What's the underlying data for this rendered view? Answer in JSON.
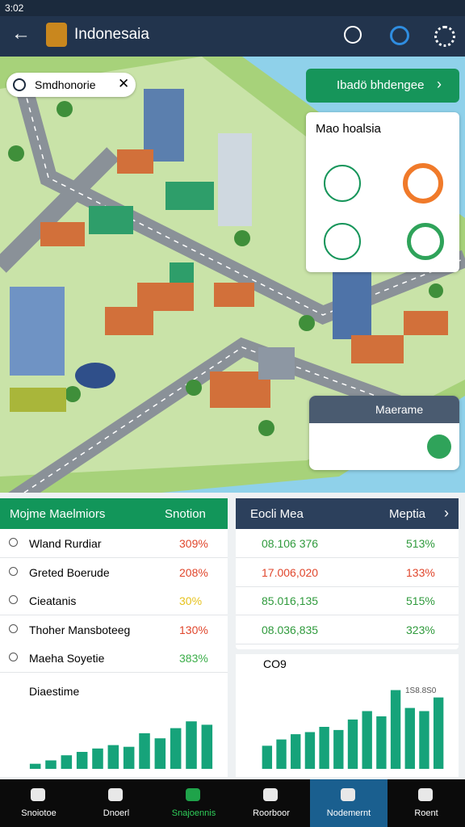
{
  "status_bar": {
    "time": "3:02"
  },
  "app_bar": {
    "title": "Indonesaia"
  },
  "map": {
    "search_text": "Smdhonorie",
    "action_button": "Ibadö bhdengee",
    "info_card": {
      "title": "Mao hoalsia"
    },
    "people_card": {
      "title": "Maerame"
    }
  },
  "left_panel": {
    "header_left": "Mojme Maelmiors",
    "header_right": "Snotion",
    "rows": [
      {
        "label": "Wland Rurdiar",
        "value": "309%",
        "color": "#e0462c"
      },
      {
        "label": "Greted Boerude",
        "value": "208%",
        "color": "#e0462c"
      },
      {
        "label": "Cieatanis",
        "value": "30%",
        "color": "#e6c21e"
      },
      {
        "label": "Thoher Mansboteeg",
        "value": "130%",
        "color": "#e0462c"
      },
      {
        "label": "Maeha Soyetie",
        "value": "383%",
        "color": "#3cae4a"
      }
    ],
    "chart": {
      "title": "Diaestime",
      "color": "#16a37a",
      "ylim": [
        0,
        80
      ],
      "values": [
        6,
        10,
        16,
        20,
        24,
        28,
        26,
        42,
        36,
        48,
        56,
        52
      ]
    }
  },
  "right_panel": {
    "header_left": "Eocli Mea",
    "header_right": "Meptia",
    "rows": [
      {
        "label": "08.106 376",
        "value": "513%",
        "label_color": "#2f9a3c",
        "value_color": "#2f9a3c"
      },
      {
        "label": "17.006,020",
        "value": "133%",
        "label_color": "#e0462c",
        "value_color": "#e0462c"
      },
      {
        "label": "85.016,135",
        "value": "515%",
        "label_color": "#2f9a3c",
        "value_color": "#2f9a3c"
      },
      {
        "label": "08.036,835",
        "value": "323%",
        "label_color": "#2f9a3c",
        "value_color": "#2f9a3c"
      }
    ],
    "chart": {
      "title": "CO9",
      "annotation": "1S8.8S0",
      "color": "#16a37a",
      "ylim": [
        0,
        80
      ],
      "values": [
        22,
        28,
        33,
        35,
        40,
        37,
        47,
        55,
        50,
        75,
        58,
        55,
        68
      ]
    }
  },
  "bottom_nav": {
    "items": [
      "Snoiotoe",
      "Dnoerl",
      "Snajoennis",
      "Roorboor",
      "Nodemernt",
      "Roent"
    ],
    "active": 4
  }
}
